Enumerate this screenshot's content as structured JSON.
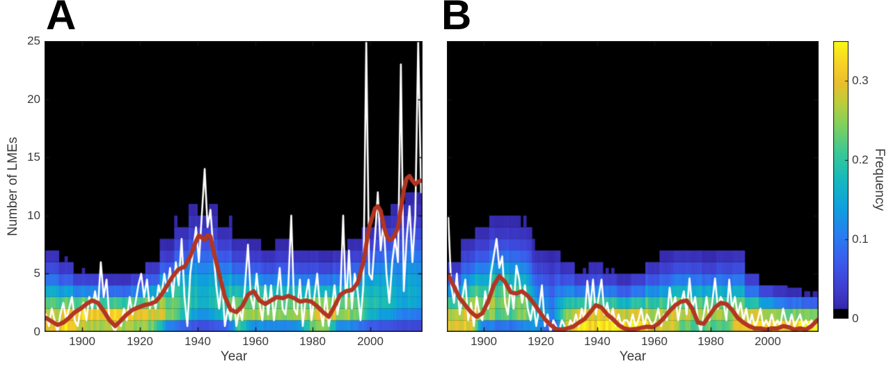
{
  "panel_labels": [
    "A",
    "B"
  ],
  "colorbar": {
    "label": "Frequency",
    "ticks": [
      0,
      0.1,
      0.2,
      0.3
    ],
    "vmax": 0.35,
    "black_below": 0.012
  },
  "colors": {
    "background": "#ffffff",
    "heat_background": "#000000",
    "red_line": "#b23522",
    "white_line": "#ffffff",
    "axis": "#141414",
    "tick_text": "#3a3a3a",
    "parula_stops": [
      [
        0.0,
        "#2e1e96"
      ],
      [
        0.1,
        "#3f3ccd"
      ],
      [
        0.2,
        "#3c5aeb"
      ],
      [
        0.3,
        "#287df0"
      ],
      [
        0.4,
        "#0fa0de"
      ],
      [
        0.5,
        "#14b9be"
      ],
      [
        0.6,
        "#3cc896"
      ],
      [
        0.7,
        "#82d05c"
      ],
      [
        0.78,
        "#becd3c"
      ],
      [
        0.85,
        "#ebbe2d"
      ],
      [
        0.92,
        "#f8d226"
      ],
      [
        1.0,
        "#f8f814"
      ]
    ]
  },
  "chart_data": [
    {
      "panel": "A",
      "type": "heatmap+lines",
      "x_label": "Year",
      "y_label": "Number of LMEs",
      "x_range": [
        1887,
        2018
      ],
      "y_range": [
        0,
        25
      ],
      "x_ticks": [
        1900,
        1920,
        1940,
        1960,
        1980,
        2000
      ],
      "y_ticks": [
        0,
        5,
        10,
        15,
        20,
        25
      ],
      "show_y_tick_labels": true,
      "heat_bins": {
        "start_year": 1887,
        "bin_width": 5,
        "envelope": [
          7.5,
          6.5,
          5.5,
          5.5,
          5,
          5,
          5.5,
          6.5,
          8,
          10,
          11.5,
          11.5,
          10,
          8.5,
          8,
          7.5,
          8,
          7.5,
          7.5,
          7,
          7.5,
          8.5,
          10,
          11,
          12,
          13
        ],
        "mode": [
          0.5,
          0.5,
          1,
          1,
          1,
          1,
          1,
          1,
          1.5,
          2,
          2.5,
          2.5,
          2,
          1,
          1.5,
          1.5,
          1.5,
          1.5,
          1,
          1,
          1.5,
          1.5,
          2,
          2.5,
          2.5,
          3
        ],
        "peak_freq": [
          0.3,
          0.33,
          0.33,
          0.32,
          0.33,
          0.32,
          0.3,
          0.3,
          0.26,
          0.22,
          0.18,
          0.17,
          0.2,
          0.26,
          0.26,
          0.26,
          0.25,
          0.26,
          0.28,
          0.3,
          0.26,
          0.24,
          0.2,
          0.17,
          0.16,
          0.15
        ]
      },
      "white_line": {
        "name": "annual-count",
        "start_year": 1887,
        "values": [
          1.5,
          0.5,
          2,
          1,
          0,
          1.5,
          2.5,
          1,
          2,
          3,
          1,
          0.5,
          2,
          2.5,
          1,
          3,
          2,
          3.5,
          2,
          6,
          3,
          4.5,
          1,
          0.5,
          0,
          1,
          0.5,
          2,
          1,
          3,
          1.5,
          2.5,
          4,
          5,
          3,
          4.5,
          2,
          3,
          2,
          4,
          3,
          5,
          3.5,
          5.5,
          3,
          6,
          4,
          8,
          3,
          0.5,
          5,
          7,
          9,
          6,
          10,
          14,
          9,
          10.5,
          7,
          4,
          2,
          4.5,
          0.5,
          2,
          1,
          3,
          0.5,
          2,
          1,
          4,
          7.5,
          3,
          2,
          5,
          2.5,
          1,
          4,
          1.5,
          4,
          1,
          3,
          5.5,
          2,
          1.5,
          4,
          10,
          2,
          1.5,
          4.5,
          0.5,
          3,
          4.5,
          1,
          3,
          5,
          2,
          0.5,
          3.5,
          0.5,
          2,
          4,
          1.5,
          3,
          10,
          2,
          7,
          2,
          5,
          3.5,
          1,
          4,
          25,
          5,
          4.5,
          8,
          12,
          7,
          9.5,
          5,
          2.5,
          6,
          8,
          6,
          23,
          3.5,
          8,
          10.8,
          6,
          10,
          25,
          12
        ]
      },
      "red_line": {
        "name": "smoothed-count",
        "years": [
          1887,
          1889,
          1891,
          1893,
          1895,
          1897,
          1899,
          1901,
          1903,
          1905,
          1907,
          1909,
          1911,
          1913,
          1915,
          1917,
          1919,
          1921,
          1923,
          1925,
          1927,
          1929,
          1931,
          1933,
          1935,
          1937,
          1939,
          1940,
          1941,
          1942,
          1943,
          1944,
          1945,
          1947,
          1949,
          1951,
          1953,
          1955,
          1957,
          1959,
          1961,
          1963,
          1965,
          1967,
          1969,
          1971,
          1973,
          1975,
          1977,
          1979,
          1981,
          1983,
          1985,
          1987,
          1989,
          1991,
          1993,
          1995,
          1997,
          1999,
          2001,
          2002,
          2003,
          2004,
          2005,
          2006,
          2007,
          2008,
          2009,
          2010,
          2011,
          2012,
          2013,
          2014,
          2015,
          2016,
          2017
        ],
        "values": [
          1.2,
          0.9,
          0.6,
          0.8,
          1.2,
          1.7,
          2.0,
          2.4,
          2.7,
          2.5,
          1.8,
          1.0,
          0.5,
          1.0,
          1.5,
          1.9,
          2.1,
          2.3,
          2.4,
          2.6,
          3.2,
          4.0,
          4.8,
          5.4,
          5.6,
          6.5,
          7.8,
          8.3,
          8.1,
          7.9,
          8.3,
          8.2,
          7.0,
          5.0,
          3.0,
          1.9,
          1.7,
          2.2,
          3.2,
          3.5,
          2.7,
          2.4,
          2.7,
          3.0,
          2.9,
          3.1,
          2.9,
          2.6,
          2.7,
          2.6,
          2.2,
          1.7,
          1.3,
          2.2,
          3.2,
          3.5,
          3.6,
          4.2,
          6.0,
          9.0,
          10.6,
          10.8,
          10.4,
          9.2,
          8.3,
          7.9,
          8.0,
          8.4,
          9.0,
          10.6,
          12.2,
          13.2,
          13.4,
          13.0,
          12.7,
          12.9,
          13.0
        ]
      }
    },
    {
      "panel": "B",
      "type": "heatmap+lines",
      "x_label": "Year",
      "y_label": "Number of LMEs",
      "x_range": [
        1887,
        2018
      ],
      "y_range": [
        0,
        25
      ],
      "x_ticks": [
        1900,
        1920,
        1940,
        1960,
        1980,
        2000
      ],
      "y_ticks": [
        0,
        5,
        10,
        15,
        20,
        25
      ],
      "show_y_tick_labels": false,
      "heat_bins": {
        "start_year": 1887,
        "bin_width": 5,
        "envelope": [
          6.5,
          8.5,
          9.5,
          10.3,
          10.3,
          10,
          8.3,
          8,
          6.5,
          5.5,
          6,
          5.5,
          5,
          5.5,
          6.5,
          7,
          7.5,
          7.5,
          7,
          7.5,
          7.5,
          5.5,
          4.5,
          4,
          3.8,
          3.5
        ],
        "mode": [
          0.5,
          0.5,
          1.5,
          2,
          2,
          1.5,
          1,
          1.5,
          0.5,
          0.5,
          0.5,
          0.5,
          0.5,
          0.5,
          0.5,
          0.5,
          1,
          1,
          1,
          1,
          0.5,
          0.5,
          0.5,
          0.5,
          0.5,
          0.5
        ],
        "peak_freq": [
          0.3,
          0.3,
          0.26,
          0.25,
          0.24,
          0.24,
          0.16,
          0.1,
          0.28,
          0.33,
          0.33,
          0.33,
          0.33,
          0.32,
          0.3,
          0.3,
          0.28,
          0.26,
          0.28,
          0.26,
          0.28,
          0.3,
          0.32,
          0.32,
          0.33,
          0.33
        ]
      },
      "white_line": {
        "name": "annual-count",
        "start_year": 1887,
        "values": [
          9.8,
          4,
          2.5,
          5,
          1.5,
          3,
          4.5,
          1,
          2.5,
          0.5,
          3,
          1.5,
          1,
          3.5,
          2,
          5,
          6.5,
          8,
          5.5,
          6.5,
          2.5,
          1.5,
          4,
          2,
          5.7,
          4.5,
          2.5,
          4,
          2,
          1,
          2.5,
          0.5,
          2,
          4,
          0.5,
          1.5,
          0,
          1,
          0.5,
          0,
          1,
          0.5,
          0,
          1,
          0.5,
          1.5,
          0.5,
          2,
          1,
          4.4,
          2,
          4.5,
          1.5,
          3,
          4.5,
          1.5,
          2.5,
          1,
          2,
          0.5,
          1.5,
          0.5,
          1,
          1,
          0.5,
          1.5,
          0.5,
          1,
          2,
          0.5,
          1.5,
          1,
          0.5,
          1,
          2,
          0.5,
          1.5,
          1,
          3.8,
          2,
          3,
          1,
          2.5,
          3.5,
          1.5,
          4.6,
          2,
          3,
          1,
          0,
          1.5,
          3,
          1,
          2.5,
          4.6,
          2,
          3,
          2.5,
          1,
          4.5,
          2,
          3,
          1.5,
          2.5,
          1,
          2,
          0.5,
          1.5,
          0.5,
          1,
          2,
          0.5,
          1,
          0.5,
          1.5,
          0.5,
          1,
          0.5,
          2,
          1,
          0.5,
          1.5,
          0.5,
          1,
          1.5,
          0.5,
          1,
          0.5,
          1,
          0.5,
          1
        ]
      },
      "red_line": {
        "name": "smoothed-count",
        "years": [
          1887,
          1889,
          1891,
          1893,
          1895,
          1897,
          1899,
          1901,
          1903,
          1905,
          1907,
          1909,
          1911,
          1913,
          1915,
          1917,
          1919,
          1921,
          1923,
          1925,
          1927,
          1929,
          1931,
          1933,
          1935,
          1937,
          1939,
          1941,
          1943,
          1945,
          1947,
          1949,
          1951,
          1953,
          1955,
          1957,
          1959,
          1961,
          1963,
          1965,
          1967,
          1969,
          1971,
          1973,
          1975,
          1977,
          1979,
          1981,
          1983,
          1985,
          1987,
          1989,
          1991,
          1993,
          1995,
          1997,
          1999,
          2001,
          2003,
          2005,
          2007,
          2009,
          2011,
          2013,
          2015,
          2017
        ],
        "values": [
          4.9,
          3.9,
          2.9,
          2.3,
          1.7,
          1.3,
          1.6,
          2.6,
          4.0,
          4.8,
          4.3,
          3.4,
          3.3,
          3.5,
          3.1,
          2.5,
          1.8,
          1.1,
          0.6,
          0.25,
          0.2,
          0.3,
          0.45,
          0.8,
          1.1,
          1.7,
          2.3,
          2.1,
          1.5,
          1.1,
          0.6,
          0.3,
          0.2,
          0.25,
          0.35,
          0.45,
          0.4,
          0.7,
          1.2,
          1.8,
          2.3,
          2.6,
          2.7,
          2.0,
          0.8,
          0.7,
          1.4,
          2.1,
          2.5,
          2.4,
          1.9,
          1.2,
          0.8,
          0.5,
          0.3,
          0.3,
          0.2,
          0.3,
          0.3,
          0.5,
          0.4,
          0.2,
          0.3,
          0.2,
          0.5,
          1.0
        ]
      }
    }
  ]
}
